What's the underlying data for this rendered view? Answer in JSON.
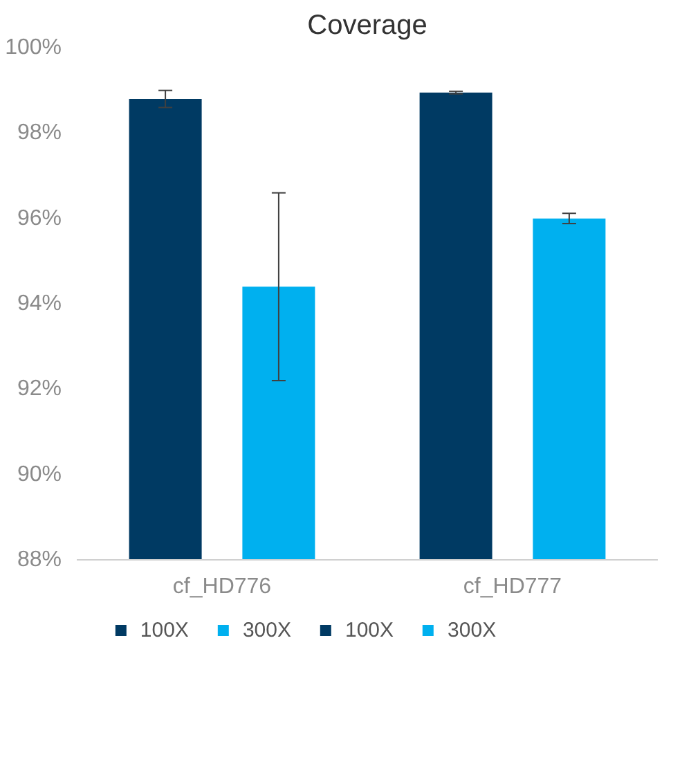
{
  "chart_data": {
    "type": "bar",
    "title": "Coverage",
    "categories": [
      "cf_HD776",
      "cf_HD777"
    ],
    "series": [
      {
        "name": "100X",
        "color": "#003a63",
        "values": [
          98.8,
          null
        ],
        "errors": [
          0.2,
          null
        ]
      },
      {
        "name": "300X",
        "color": "#00b0ef",
        "values": [
          94.4,
          null
        ],
        "errors": [
          2.2,
          null
        ]
      },
      {
        "name": "100X",
        "color": "#003a63",
        "values": [
          null,
          98.95
        ],
        "errors": [
          null,
          0.03
        ]
      },
      {
        "name": "300X",
        "color": "#00b0ef",
        "values": [
          null,
          96.0
        ],
        "errors": [
          null,
          0.12
        ]
      }
    ],
    "ylim": [
      88,
      100
    ],
    "yticks": [
      {
        "value": 88,
        "label": "88%"
      },
      {
        "value": 90,
        "label": "90%"
      },
      {
        "value": 92,
        "label": "92%"
      },
      {
        "value": 94,
        "label": "94%"
      },
      {
        "value": 96,
        "label": "96%"
      },
      {
        "value": 98,
        "label": "98%"
      },
      {
        "value": 100,
        "label": "100%"
      }
    ],
    "grid": false,
    "legend": "bottom"
  }
}
